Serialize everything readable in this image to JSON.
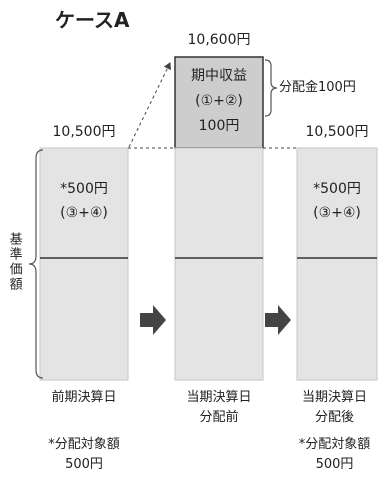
{
  "title": "ケースA",
  "nav_label": "基準価額",
  "distribution_label": "分配金100円",
  "previous": {
    "value_label": "10,500円",
    "upper_text": [
      "*500円",
      "(③+④)"
    ],
    "date_label": [
      "前期決算日"
    ],
    "note": [
      "*分配対象額",
      "500円"
    ]
  },
  "before_distribution": {
    "value_label": "10,600円",
    "income_box": [
      "期中収益",
      "(①+②)",
      "100円"
    ],
    "date_label": [
      "当期決算日",
      "分配前"
    ]
  },
  "after_distribution": {
    "value_label": "10,500円",
    "upper_text": [
      "*500円",
      "(③+④)"
    ],
    "date_label": [
      "当期決算日",
      "分配後"
    ],
    "note": [
      "*分配対象額",
      "500円"
    ]
  },
  "colors": {
    "box_fill": "#e4e4e4",
    "box_stroke": "#c6c6c6",
    "income_fill": "#cdcdcd",
    "line": "#333333",
    "arrow": "#444444"
  }
}
